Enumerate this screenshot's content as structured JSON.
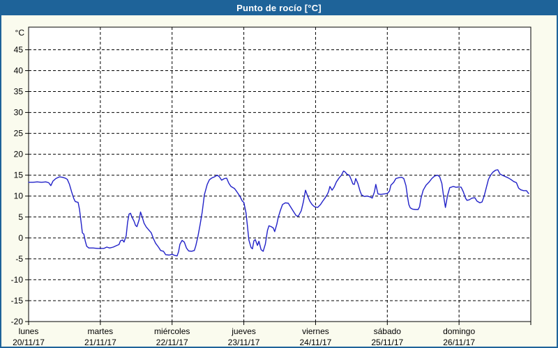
{
  "window": {
    "title": "Punto de rocío [°C]",
    "colors": {
      "titlebar_bg": "#1e6399",
      "titlebar_text": "#ffffff",
      "body_bg": "#fafbee",
      "plot_bg": "#ffffff",
      "axis_and_grid": "#000000",
      "line": "#2121c8"
    }
  },
  "chart_data": {
    "type": "line",
    "title": "Punto de rocío [°C]",
    "ylabel": "°C",
    "xlabel": "",
    "grid": "dashed",
    "legend": "none",
    "ylim": [
      -20,
      50.4
    ],
    "y_ticks": [
      45,
      40,
      35,
      30,
      25,
      20,
      15,
      10,
      5,
      0,
      -5,
      -10,
      -15,
      -20
    ],
    "y_unit_label": "°C",
    "x_days": [
      {
        "name": "lunes",
        "date": "20/11/17"
      },
      {
        "name": "martes",
        "date": "21/11/17"
      },
      {
        "name": "miércoles",
        "date": "22/11/17"
      },
      {
        "name": "jueves",
        "date": "23/11/17"
      },
      {
        "name": "viernes",
        "date": "24/11/17"
      },
      {
        "name": "sábado",
        "date": "25/11/17"
      },
      {
        "name": "domingo",
        "date": "26/11/17"
      }
    ],
    "series": [
      {
        "name": "Punto de rocío",
        "color": "#2121c8",
        "x_unit": "days_from_monday_start",
        "points": [
          [
            0.0,
            13.3
          ],
          [
            0.06,
            13.3
          ],
          [
            0.12,
            13.4
          ],
          [
            0.18,
            13.3
          ],
          [
            0.24,
            13.4
          ],
          [
            0.28,
            13.2
          ],
          [
            0.31,
            12.5
          ],
          [
            0.34,
            13.6
          ],
          [
            0.38,
            14.2
          ],
          [
            0.43,
            14.6
          ],
          [
            0.47,
            14.5
          ],
          [
            0.51,
            14.3
          ],
          [
            0.54,
            14.0
          ],
          [
            0.57,
            12.8
          ],
          [
            0.6,
            11.0
          ],
          [
            0.63,
            9.4
          ],
          [
            0.65,
            8.7
          ],
          [
            0.69,
            8.5
          ],
          [
            0.71,
            6.8
          ],
          [
            0.73,
            4.0
          ],
          [
            0.75,
            1.2
          ],
          [
            0.77,
            0.9
          ],
          [
            0.79,
            -0.8
          ],
          [
            0.81,
            -2.0
          ],
          [
            0.84,
            -2.4
          ],
          [
            0.9,
            -2.4
          ],
          [
            0.96,
            -2.5
          ],
          [
            1.0,
            -2.5
          ],
          [
            1.05,
            -2.5
          ],
          [
            1.09,
            -2.2
          ],
          [
            1.13,
            -2.4
          ],
          [
            1.18,
            -2.2
          ],
          [
            1.23,
            -1.8
          ],
          [
            1.26,
            -1.6
          ],
          [
            1.28,
            -0.7
          ],
          [
            1.31,
            -0.5
          ],
          [
            1.33,
            -1.0
          ],
          [
            1.36,
            0.5
          ],
          [
            1.38,
            3.7
          ],
          [
            1.4,
            5.7
          ],
          [
            1.42,
            5.9
          ],
          [
            1.44,
            5.0
          ],
          [
            1.47,
            4.0
          ],
          [
            1.49,
            3.0
          ],
          [
            1.51,
            2.7
          ],
          [
            1.54,
            4.3
          ],
          [
            1.56,
            6.2
          ],
          [
            1.58,
            5.2
          ],
          [
            1.61,
            3.5
          ],
          [
            1.64,
            2.6
          ],
          [
            1.67,
            2.0
          ],
          [
            1.71,
            1.2
          ],
          [
            1.74,
            -0.2
          ],
          [
            1.77,
            -1.3
          ],
          [
            1.81,
            -2.2
          ],
          [
            1.84,
            -3.0
          ],
          [
            1.88,
            -3.2
          ],
          [
            1.91,
            -4.0
          ],
          [
            1.96,
            -4.1
          ],
          [
            2.0,
            -3.9
          ],
          [
            2.04,
            -4.2
          ],
          [
            2.07,
            -4.3
          ],
          [
            2.09,
            -3.3
          ],
          [
            2.11,
            -1.5
          ],
          [
            2.14,
            -0.6
          ],
          [
            2.17,
            -1.0
          ],
          [
            2.2,
            -2.4
          ],
          [
            2.23,
            -3.1
          ],
          [
            2.27,
            -3.2
          ],
          [
            2.31,
            -3.0
          ],
          [
            2.33,
            -1.9
          ],
          [
            2.36,
            0.3
          ],
          [
            2.39,
            3.1
          ],
          [
            2.42,
            6.2
          ],
          [
            2.45,
            10.3
          ],
          [
            2.49,
            12.8
          ],
          [
            2.52,
            13.9
          ],
          [
            2.55,
            14.3
          ],
          [
            2.59,
            14.6
          ],
          [
            2.63,
            15.0
          ],
          [
            2.66,
            14.6
          ],
          [
            2.69,
            13.8
          ],
          [
            2.73,
            14.2
          ],
          [
            2.76,
            14.3
          ],
          [
            2.79,
            13.1
          ],
          [
            2.82,
            12.3
          ],
          [
            2.87,
            11.8
          ],
          [
            2.9,
            11.1
          ],
          [
            2.94,
            10.1
          ],
          [
            2.98,
            8.8
          ],
          [
            3.0,
            8.5
          ],
          [
            3.03,
            6.0
          ],
          [
            3.05,
            2.9
          ],
          [
            3.07,
            -0.5
          ],
          [
            3.1,
            -2.3
          ],
          [
            3.12,
            -2.6
          ],
          [
            3.14,
            -0.7
          ],
          [
            3.16,
            -0.4
          ],
          [
            3.19,
            -1.8
          ],
          [
            3.21,
            -0.8
          ],
          [
            3.24,
            -2.8
          ],
          [
            3.27,
            -3.2
          ],
          [
            3.3,
            -1.5
          ],
          [
            3.33,
            1.8
          ],
          [
            3.35,
            2.9
          ],
          [
            3.38,
            2.7
          ],
          [
            3.41,
            2.4
          ],
          [
            3.43,
            1.5
          ],
          [
            3.46,
            3.3
          ],
          [
            3.48,
            4.9
          ],
          [
            3.51,
            6.6
          ],
          [
            3.54,
            8.0
          ],
          [
            3.58,
            8.4
          ],
          [
            3.62,
            8.3
          ],
          [
            3.66,
            7.2
          ],
          [
            3.7,
            6.1
          ],
          [
            3.73,
            5.3
          ],
          [
            3.76,
            5.2
          ],
          [
            3.8,
            6.5
          ],
          [
            3.83,
            8.6
          ],
          [
            3.86,
            11.4
          ],
          [
            3.89,
            10.0
          ],
          [
            3.92,
            8.8
          ],
          [
            3.95,
            8.0
          ],
          [
            3.98,
            7.5
          ],
          [
            4.0,
            7.4
          ],
          [
            4.03,
            7.3
          ],
          [
            4.07,
            8.0
          ],
          [
            4.1,
            8.8
          ],
          [
            4.13,
            9.5
          ],
          [
            4.16,
            10.3
          ],
          [
            4.18,
            11.0
          ],
          [
            4.2,
            12.3
          ],
          [
            4.23,
            11.4
          ],
          [
            4.26,
            12.2
          ],
          [
            4.29,
            13.4
          ],
          [
            4.33,
            14.4
          ],
          [
            4.36,
            15.0
          ],
          [
            4.39,
            16.0
          ],
          [
            4.41,
            15.8
          ],
          [
            4.44,
            15.2
          ],
          [
            4.47,
            15.0
          ],
          [
            4.5,
            13.8
          ],
          [
            4.52,
            12.9
          ],
          [
            4.54,
            12.8
          ],
          [
            4.56,
            14.2
          ],
          [
            4.59,
            13.0
          ],
          [
            4.62,
            11.2
          ],
          [
            4.64,
            10.3
          ],
          [
            4.68,
            9.9
          ],
          [
            4.72,
            10.0
          ],
          [
            4.76,
            9.8
          ],
          [
            4.79,
            9.5
          ],
          [
            4.82,
            11.0
          ],
          [
            4.84,
            12.8
          ],
          [
            4.87,
            10.5
          ],
          [
            4.91,
            10.4
          ],
          [
            4.95,
            10.5
          ],
          [
            5.0,
            10.6
          ],
          [
            5.03,
            11.2
          ],
          [
            5.05,
            12.6
          ],
          [
            5.09,
            13.3
          ],
          [
            5.12,
            14.2
          ],
          [
            5.16,
            14.4
          ],
          [
            5.2,
            14.5
          ],
          [
            5.23,
            14.2
          ],
          [
            5.26,
            12.5
          ],
          [
            5.28,
            10.0
          ],
          [
            5.3,
            8.0
          ],
          [
            5.32,
            7.2
          ],
          [
            5.35,
            6.9
          ],
          [
            5.39,
            6.8
          ],
          [
            5.43,
            6.8
          ],
          [
            5.45,
            7.5
          ],
          [
            5.47,
            9.5
          ],
          [
            5.5,
            11.4
          ],
          [
            5.54,
            12.6
          ],
          [
            5.58,
            13.3
          ],
          [
            5.62,
            14.2
          ],
          [
            5.66,
            14.8
          ],
          [
            5.7,
            15.0
          ],
          [
            5.73,
            14.6
          ],
          [
            5.76,
            13.0
          ],
          [
            5.78,
            10.5
          ],
          [
            5.81,
            7.3
          ],
          [
            5.84,
            10.2
          ],
          [
            5.87,
            12.0
          ],
          [
            5.92,
            12.3
          ],
          [
            5.96,
            12.1
          ],
          [
            6.0,
            12.2
          ],
          [
            6.03,
            12.1
          ],
          [
            6.06,
            11.0
          ],
          [
            6.09,
            9.5
          ],
          [
            6.11,
            9.0
          ],
          [
            6.14,
            9.1
          ],
          [
            6.18,
            9.5
          ],
          [
            6.22,
            9.6
          ],
          [
            6.25,
            8.8
          ],
          [
            6.29,
            8.4
          ],
          [
            6.32,
            8.6
          ],
          [
            6.35,
            10.0
          ],
          [
            6.38,
            12.0
          ],
          [
            6.41,
            14.0
          ],
          [
            6.44,
            15.0
          ],
          [
            6.47,
            15.7
          ],
          [
            6.51,
            16.2
          ],
          [
            6.54,
            16.3
          ],
          [
            6.57,
            15.3
          ],
          [
            6.6,
            15.0
          ],
          [
            6.64,
            14.7
          ],
          [
            6.68,
            14.4
          ],
          [
            6.72,
            14.0
          ],
          [
            6.76,
            13.5
          ],
          [
            6.8,
            13.2
          ],
          [
            6.83,
            11.9
          ],
          [
            6.86,
            11.5
          ],
          [
            6.9,
            11.3
          ],
          [
            6.94,
            11.3
          ],
          [
            6.97,
            10.6
          ]
        ]
      }
    ]
  }
}
